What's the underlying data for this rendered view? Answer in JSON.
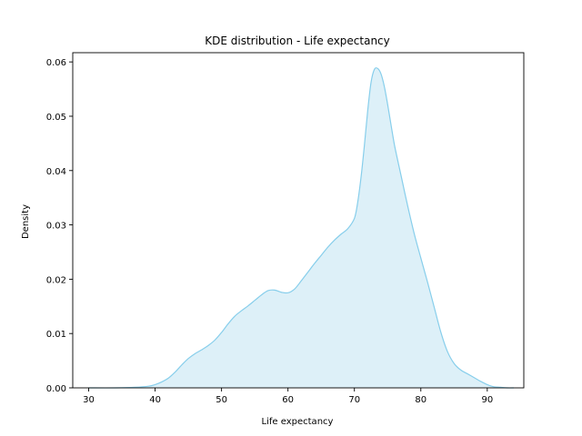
{
  "chart_data": {
    "type": "area",
    "title": "KDE distribution - Life expectancy",
    "xlabel": "Life expectancy",
    "ylabel": "Density",
    "xlim": [
      27.6,
      95.5
    ],
    "ylim": [
      0,
      0.0617
    ],
    "xticks": [
      30,
      40,
      50,
      60,
      70,
      80,
      90
    ],
    "yticks": [
      0.0,
      0.01,
      0.02,
      0.03,
      0.04,
      0.05,
      0.06
    ],
    "ytick_labels": [
      "0.00",
      "0.01",
      "0.02",
      "0.03",
      "0.04",
      "0.05",
      "0.06"
    ],
    "grid": false,
    "legend": "none",
    "line_color": "#87ceeb",
    "fill_color": "#ddf0f8",
    "series": [
      {
        "x": [
          30,
          34,
          37,
          39,
          40,
          41,
          42,
          43,
          44,
          45,
          46,
          47,
          48,
          49,
          50,
          51,
          52,
          53,
          54,
          55,
          56,
          57,
          58,
          59,
          60,
          61,
          62,
          63,
          64,
          65,
          66,
          67,
          68,
          69,
          70,
          70.5,
          71,
          71.5,
          72,
          72.5,
          73,
          73.5,
          74,
          74.5,
          75,
          75.5,
          76,
          76.5,
          77,
          78,
          79,
          80,
          81,
          82,
          83,
          84,
          85,
          86,
          87,
          88,
          89,
          90,
          91,
          92,
          93,
          94
        ],
        "y": [
          0.0,
          0.0,
          0.0001,
          0.0003,
          0.0006,
          0.0011,
          0.0018,
          0.0029,
          0.0042,
          0.0054,
          0.0063,
          0.007,
          0.0078,
          0.0088,
          0.0102,
          0.0118,
          0.0132,
          0.0142,
          0.0151,
          0.0161,
          0.0171,
          0.0179,
          0.018,
          0.0176,
          0.0175,
          0.0182,
          0.0197,
          0.0213,
          0.0229,
          0.0244,
          0.0259,
          0.0272,
          0.0283,
          0.0293,
          0.0312,
          0.0342,
          0.0388,
          0.0446,
          0.051,
          0.0562,
          0.0586,
          0.0588,
          0.0578,
          0.0555,
          0.0522,
          0.0485,
          0.0449,
          0.042,
          0.0392,
          0.0336,
          0.0284,
          0.0239,
          0.0195,
          0.0149,
          0.0103,
          0.0067,
          0.0045,
          0.0033,
          0.0026,
          0.0019,
          0.0012,
          0.0006,
          0.0002,
          0.0001,
          0.0,
          0.0
        ]
      }
    ]
  }
}
